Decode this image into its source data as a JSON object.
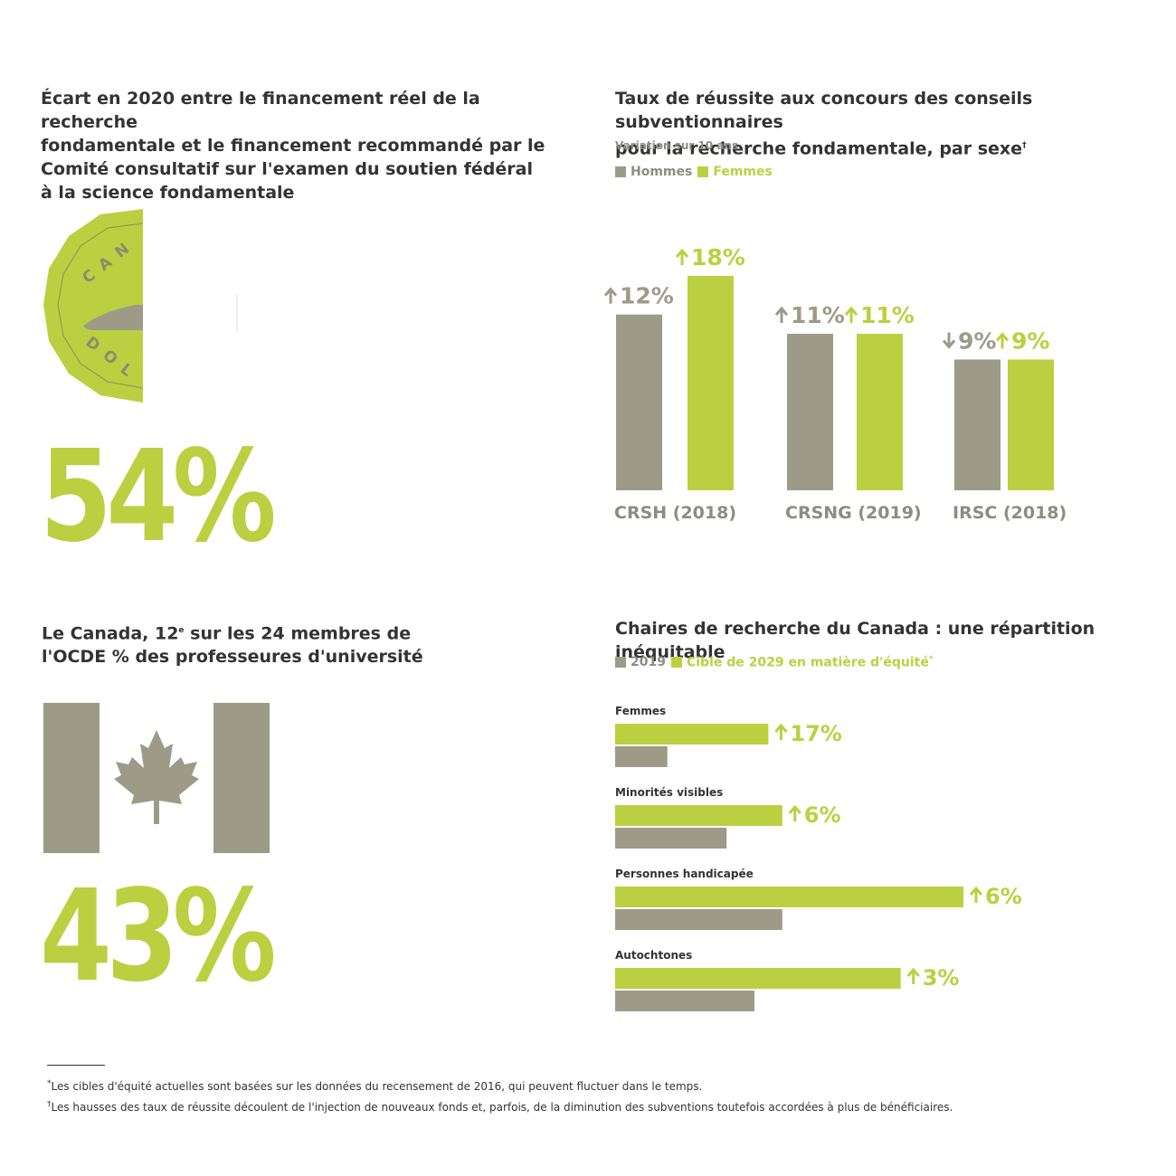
{
  "colors": {
    "men": "#9d9a88",
    "women": "#bbd040",
    "text": "#333333",
    "muted": "#8c8c82"
  },
  "gap_section": {
    "title_lines": [
      "Écart en 2020 entre le financement réel de la recherche",
      "fondamentale et le financement recommandé par le",
      "Comité consultatif sur l'examen du soutien fédéral",
      "à la science fondamentale"
    ],
    "coin_text_top": "CAN",
    "coin_text_bottom": "DOL",
    "big_value": "54%"
  },
  "professors_section": {
    "title_line1_a": "Le Canada, 12",
    "title_line1_sup": "e",
    "title_line1_b": " sur les 24 membres de",
    "title_line2": "l'OCDE % des professeures d'université",
    "big_value": "43%"
  },
  "success_chart": {
    "title_line1": "Taux de réussite aux concours des conseils subventionnaires",
    "title_line2": "pour la recherche fondamentale, par sexe",
    "title_mark": "†",
    "subtitle": "Variation sur 10 ans",
    "legend": [
      "Hommes",
      "Femmes"
    ]
  },
  "chairs_chart": {
    "title": "Chaires de recherche du Canada : une répartition inéquitable",
    "legend_2019": "2019",
    "legend_target": "Cible de 2029 en matière d'équité",
    "legend_mark": "*"
  },
  "chart_data": [
    {
      "type": "bar",
      "title": "Taux de réussite aux concours des conseils subventionnaires pour la recherche fondamentale, par sexe",
      "subtitle": "Variation sur 10 ans",
      "categories": [
        "CRSH (2018)",
        "CRSNG (2019)",
        "IRSC (2018)"
      ],
      "series": [
        {
          "name": "Hommes",
          "values": [
            12,
            11,
            -9
          ],
          "labels": [
            "12%",
            "11%",
            "9%"
          ],
          "directions": [
            "up",
            "up",
            "down"
          ],
          "bar_heights_relative": [
            0.82,
            0.73,
            0.61
          ]
        },
        {
          "name": "Femmes",
          "values": [
            18,
            11,
            9
          ],
          "labels": [
            "18%",
            "11%",
            "9%"
          ],
          "directions": [
            "up",
            "up",
            "up"
          ],
          "bar_heights_relative": [
            1.0,
            0.73,
            0.61
          ]
        }
      ],
      "legend": "top-left",
      "grid": false
    },
    {
      "type": "bar",
      "orientation": "horizontal",
      "title": "Chaires de recherche du Canada : une répartition inéquitable",
      "categories": [
        "Femmes",
        "Minorités visibles",
        "Personnes handicapée",
        "Autochtones"
      ],
      "series": [
        {
          "name": "2019",
          "values_relative": [
            0.15,
            0.32,
            0.48,
            0.4
          ]
        },
        {
          "name": "Cible de 2029 en matière d'équité",
          "values_relative": [
            0.44,
            0.48,
            1.0,
            0.82
          ]
        }
      ],
      "change_labels": [
        "17%",
        "6%",
        "6%",
        "3%"
      ],
      "legend": "top-left",
      "grid": false
    }
  ],
  "footnotes": {
    "a_mark": "*",
    "a_text": "Les cibles d'équité actuelles sont basées sur les données du recensement de 2016, qui peuvent fluctuer dans le temps.",
    "b_mark": "†",
    "b_text": "Les hausses des taux de réussite découlent de l'injection de nouveaux fonds et, parfois, de la diminution des subventions toutefois accordées à plus de bénéficiaires."
  }
}
